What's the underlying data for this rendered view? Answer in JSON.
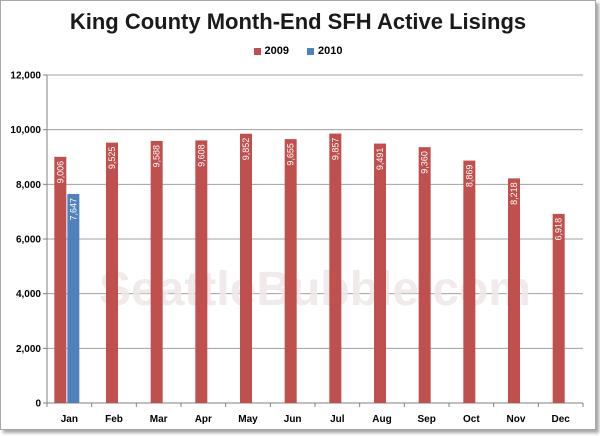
{
  "chart_data": {
    "type": "bar",
    "title": "King County Month-End SFH Active Lisings",
    "categories": [
      "Jan",
      "Feb",
      "Mar",
      "Apr",
      "May",
      "Jun",
      "Jul",
      "Aug",
      "Sep",
      "Oct",
      "Nov",
      "Dec"
    ],
    "series": [
      {
        "name": "2009",
        "color": "#c0504d",
        "values": [
          9006,
          9525,
          9588,
          9608,
          9852,
          9655,
          9857,
          9491,
          9360,
          8869,
          8218,
          6918
        ],
        "labels": [
          "9,006",
          "9,525",
          "9,588",
          "9,608",
          "9,852",
          "9,655",
          "9,857",
          "9,491",
          "9,360",
          "8,869",
          "8,218",
          "6,918"
        ]
      },
      {
        "name": "2010",
        "color": "#4f81bd",
        "values": [
          7647,
          null,
          null,
          null,
          null,
          null,
          null,
          null,
          null,
          null,
          null,
          null
        ],
        "labels": [
          "7,647",
          null,
          null,
          null,
          null,
          null,
          null,
          null,
          null,
          null,
          null,
          null
        ]
      }
    ],
    "ylim": [
      0,
      12000
    ],
    "yticks": [
      0,
      2000,
      4000,
      6000,
      8000,
      10000,
      12000
    ],
    "yticklabels": [
      "0",
      "2,000",
      "4,000",
      "6,000",
      "8,000",
      "10,000",
      "12,000"
    ],
    "grid": true,
    "legend_position": "top",
    "watermark": "SeattleBubble.com"
  }
}
